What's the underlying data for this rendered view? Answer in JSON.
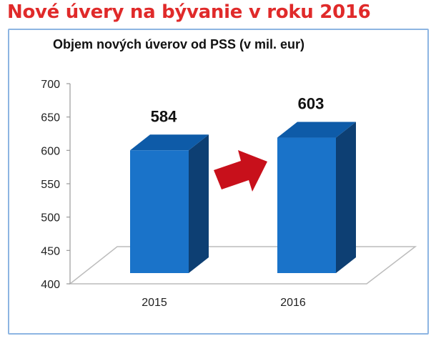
{
  "headline": "Nové úvery na bývanie v roku 2016",
  "colors": {
    "headline": "#e02a2a",
    "frame": "#8db5e2",
    "bar_front": "#1a73c9",
    "bar_side": "#0d3f73",
    "bar_top": "#0e5ba8",
    "arrow": "#c8101b"
  },
  "chart_data": {
    "type": "bar",
    "title": "Objem nových úverov od PSS (v mil. eur)",
    "categories": [
      "2015",
      "2016"
    ],
    "values": [
      584,
      603
    ],
    "data_labels": [
      "584",
      "603"
    ],
    "ylim": [
      400,
      700
    ],
    "yticks": [
      "400",
      "450",
      "500",
      "550",
      "600",
      "650",
      "700"
    ],
    "grid": false,
    "legend": "none",
    "annotations": [
      "arrow-up-right"
    ]
  }
}
